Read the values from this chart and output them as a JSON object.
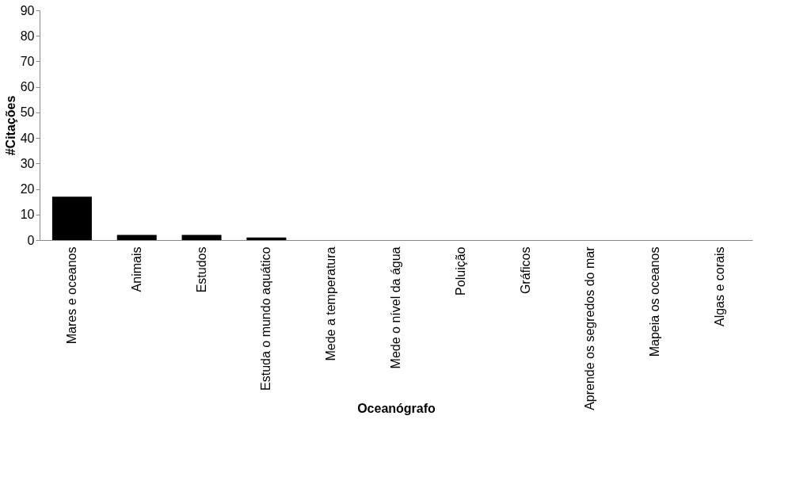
{
  "chart_data": {
    "type": "bar",
    "xlabel": "Oceanógrafo",
    "ylabel": "#Citações",
    "categories": [
      "Mares e oceanos",
      "Animais",
      "Estudos",
      "Estuda o mundo aquático",
      "Mede a temperatura",
      "Mede o nível da água",
      "Poluição",
      "Gráficos",
      "Aprende os segredos do mar",
      "Mapeia os oceanos",
      "Algas e corais"
    ],
    "values": [
      17,
      2,
      2,
      1,
      0,
      0,
      0,
      0,
      0,
      0,
      0
    ],
    "color": "#000000",
    "ylim": [
      0,
      90
    ],
    "yticks": [
      0,
      10,
      20,
      30,
      40,
      50,
      60,
      70,
      80,
      90
    ],
    "grid": false
  }
}
